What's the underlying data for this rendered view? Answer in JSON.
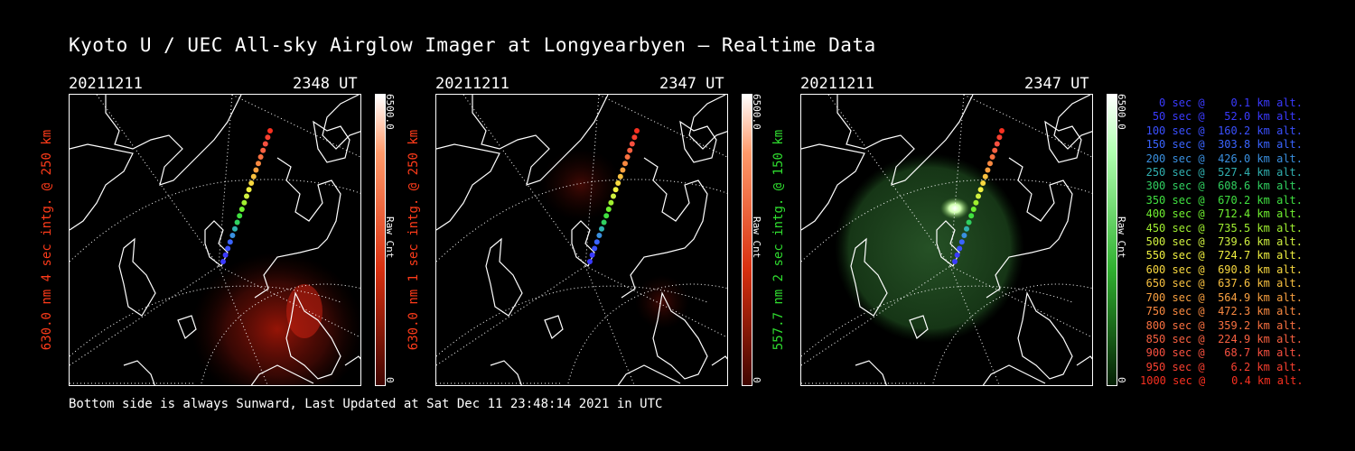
{
  "title": "Kyoto U / UEC All-sky Airglow Imager at Longyearbyen — Realtime Data",
  "footer": "Bottom side is always Sunward, Last Updated at Sat Dec 11 23:48:14 2021 in UTC",
  "panels": [
    {
      "date": "20211211",
      "time": "2348 UT",
      "side_label": "630.0 nm 4 sec intg. @ 250 km",
      "color": "#ff3b1a",
      "cbar_max": "6500.0",
      "cbar_min": "0",
      "cbar_label": "Raw Cnt"
    },
    {
      "date": "20211211",
      "time": "2347 UT",
      "side_label": "630.0 nm 1 sec intg. @ 250 km",
      "color": "#ff3b1a",
      "cbar_max": "6500.0",
      "cbar_min": "0",
      "cbar_label": "Raw Cnt"
    },
    {
      "date": "20211211",
      "time": "2347 UT",
      "side_label": "557.7 nm 2 sec intg. @ 150 km",
      "color": "#2fdc2f",
      "cbar_max": "6500.0",
      "cbar_min": "0",
      "cbar_label": "Raw Cnt"
    }
  ],
  "legend": [
    {
      "text": "0 sec @    0.1 km alt.",
      "color": "#3a3aff"
    },
    {
      "text": "50 sec @   52.0 km alt.",
      "color": "#3a3aff"
    },
    {
      "text": "100 sec @  160.2 km alt.",
      "color": "#3a50ff"
    },
    {
      "text": "150 sec @  303.8 km alt.",
      "color": "#3a64ff"
    },
    {
      "text": "200 sec @  426.0 km alt.",
      "color": "#3a90e0"
    },
    {
      "text": "250 sec @  527.4 km alt.",
      "color": "#30b0b0"
    },
    {
      "text": "300 sec @  608.6 km alt.",
      "color": "#30d060"
    },
    {
      "text": "350 sec @  670.2 km alt.",
      "color": "#40e040"
    },
    {
      "text": "400 sec @  712.4 km alt.",
      "color": "#70f030"
    },
    {
      "text": "450 sec @  735.5 km alt.",
      "color": "#a0f030"
    },
    {
      "text": "500 sec @  739.6 km alt.",
      "color": "#d0f040"
    },
    {
      "text": "550 sec @  724.7 km alt.",
      "color": "#f0f040"
    },
    {
      "text": "600 sec @  690.8 km alt.",
      "color": "#f8d840"
    },
    {
      "text": "650 sec @  637.6 km alt.",
      "color": "#f8c040"
    },
    {
      "text": "700 sec @  564.9 km alt.",
      "color": "#f8a040"
    },
    {
      "text": "750 sec @  472.3 km alt.",
      "color": "#f88840"
    },
    {
      "text": "800 sec @  359.2 km alt.",
      "color": "#f87040"
    },
    {
      "text": "850 sec @  224.9 km alt.",
      "color": "#f86040"
    },
    {
      "text": "900 sec @   68.7 km alt.",
      "color": "#f85040"
    },
    {
      "text": "950 sec @    6.2 km alt.",
      "color": "#f84030"
    },
    {
      "text": "1000 sec @    0.4 km alt.",
      "color": "#f83020"
    }
  ]
}
